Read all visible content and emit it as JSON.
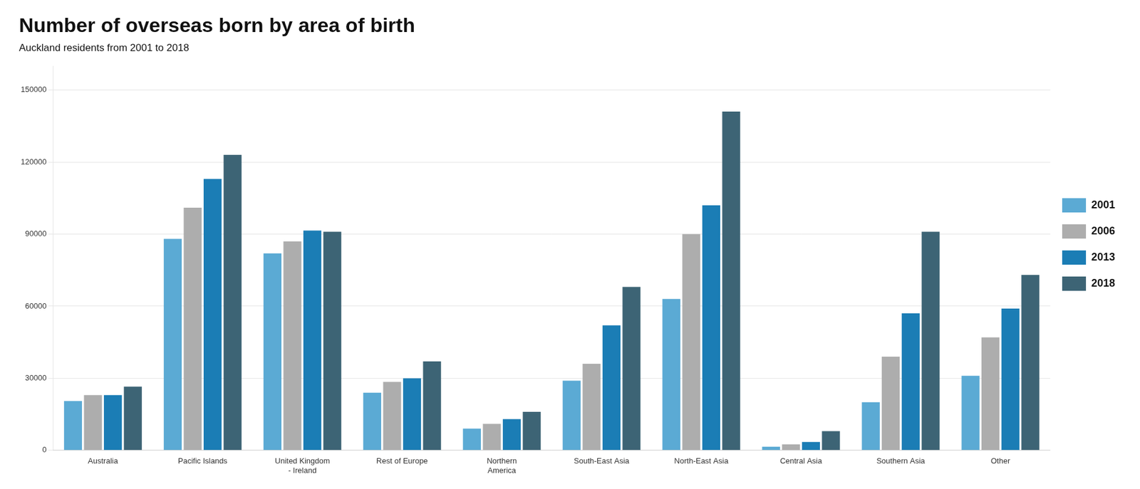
{
  "chart_data": {
    "type": "bar",
    "title": "Number of overseas born by area of birth",
    "subtitle": "Auckland residents from 2001 to 2018",
    "categories": [
      "Australia",
      "Pacific Islands",
      "United Kingdom\n- Ireland",
      "Rest of Europe",
      "Northern\nAmerica",
      "South-East Asia",
      "North-East Asia",
      "Central Asia",
      "Southern Asia",
      "Other"
    ],
    "series": [
      {
        "name": "2001",
        "color": "#5BAAD4",
        "values": [
          20500,
          88000,
          82000,
          24000,
          9000,
          29000,
          63000,
          1500,
          20000,
          31000
        ]
      },
      {
        "name": "2006",
        "color": "#ADADAD",
        "values": [
          23000,
          101000,
          87000,
          28500,
          11000,
          36000,
          90000,
          2500,
          39000,
          47000
        ]
      },
      {
        "name": "2013",
        "color": "#1B7DB5",
        "values": [
          23000,
          113000,
          91500,
          30000,
          13000,
          52000,
          102000,
          3500,
          57000,
          59000
        ]
      },
      {
        "name": "2018",
        "color": "#3D6475",
        "values": [
          26500,
          123000,
          91000,
          37000,
          16000,
          68000,
          141000,
          8000,
          91000,
          73000
        ]
      }
    ],
    "ylim": [
      0,
      160000
    ],
    "yticks": [
      0,
      30000,
      60000,
      90000,
      120000,
      150000
    ],
    "grid": true,
    "legend": "right"
  }
}
